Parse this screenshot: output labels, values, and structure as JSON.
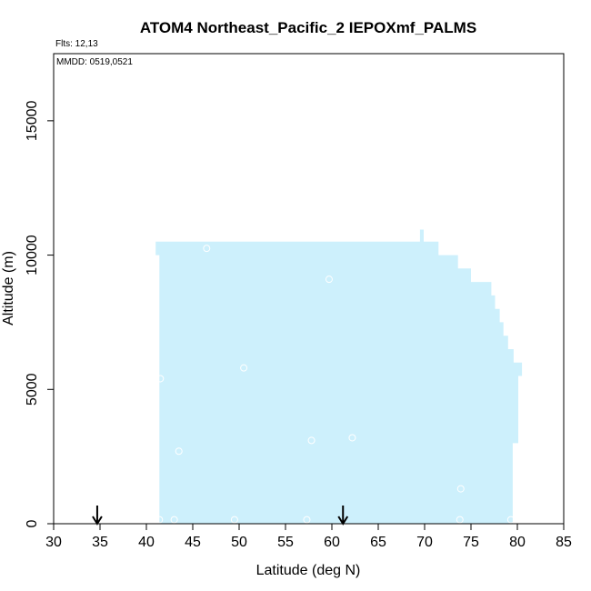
{
  "chart_data": {
    "type": "area",
    "title": "ATOM4 Northeast_Pacific_2 IEPOXmf_PALMS",
    "annotations": {
      "flights": "Flts: 12,13",
      "dates": "MMDD: 0519,0521"
    },
    "xlabel": "Latitude (deg N)",
    "ylabel": "Altitude (m)",
    "xlim": [
      30,
      85
    ],
    "ylim": [
      0,
      17500
    ],
    "xticks": [
      30,
      35,
      40,
      45,
      50,
      55,
      60,
      65,
      70,
      75,
      80,
      85
    ],
    "yticks": [
      0,
      5000,
      10000,
      15000
    ],
    "grid": false,
    "fill_color": "#cdf0fc",
    "coverage_profile": [
      {
        "lat": 41.4,
        "alt": 0
      },
      {
        "lat": 41.4,
        "alt": 10000
      },
      {
        "lat": 41.0,
        "alt": 10000
      },
      {
        "lat": 41.0,
        "alt": 10500
      },
      {
        "lat": 69.5,
        "alt": 10500
      },
      {
        "lat": 69.5,
        "alt": 10950
      },
      {
        "lat": 69.9,
        "alt": 10950
      },
      {
        "lat": 69.9,
        "alt": 10500
      },
      {
        "lat": 71.5,
        "alt": 10500
      },
      {
        "lat": 71.5,
        "alt": 10000
      },
      {
        "lat": 73.6,
        "alt": 10000
      },
      {
        "lat": 73.6,
        "alt": 9500
      },
      {
        "lat": 75.0,
        "alt": 9500
      },
      {
        "lat": 75.0,
        "alt": 9000
      },
      {
        "lat": 77.2,
        "alt": 9000
      },
      {
        "lat": 77.2,
        "alt": 8500
      },
      {
        "lat": 77.6,
        "alt": 8500
      },
      {
        "lat": 77.6,
        "alt": 8000
      },
      {
        "lat": 78.1,
        "alt": 8000
      },
      {
        "lat": 78.1,
        "alt": 7500
      },
      {
        "lat": 78.5,
        "alt": 7500
      },
      {
        "lat": 78.5,
        "alt": 7000
      },
      {
        "lat": 79.0,
        "alt": 7000
      },
      {
        "lat": 79.0,
        "alt": 6500
      },
      {
        "lat": 79.6,
        "alt": 6500
      },
      {
        "lat": 79.6,
        "alt": 6000
      },
      {
        "lat": 80.5,
        "alt": 6000
      },
      {
        "lat": 80.5,
        "alt": 5500
      },
      {
        "lat": 80.1,
        "alt": 5500
      },
      {
        "lat": 80.1,
        "alt": 3000
      },
      {
        "lat": 79.5,
        "alt": 3000
      },
      {
        "lat": 79.5,
        "alt": 0
      }
    ],
    "points": [
      {
        "lat": 46.5,
        "alt": 10250
      },
      {
        "lat": 59.7,
        "alt": 9100
      },
      {
        "lat": 41.5,
        "alt": 5400
      },
      {
        "lat": 50.5,
        "alt": 5800
      },
      {
        "lat": 43.5,
        "alt": 2700
      },
      {
        "lat": 57.8,
        "alt": 3100
      },
      {
        "lat": 62.2,
        "alt": 3200
      },
      {
        "lat": 73.9,
        "alt": 1300
      },
      {
        "lat": 41.4,
        "alt": 150
      },
      {
        "lat": 43.0,
        "alt": 150
      },
      {
        "lat": 49.5,
        "alt": 150
      },
      {
        "lat": 57.3,
        "alt": 150
      },
      {
        "lat": 73.8,
        "alt": 150
      },
      {
        "lat": 79.3,
        "alt": 150
      }
    ],
    "markers": [
      {
        "type": "arrow-down",
        "lat": 34.7
      },
      {
        "type": "arrow-down",
        "lat": 61.2
      }
    ]
  }
}
